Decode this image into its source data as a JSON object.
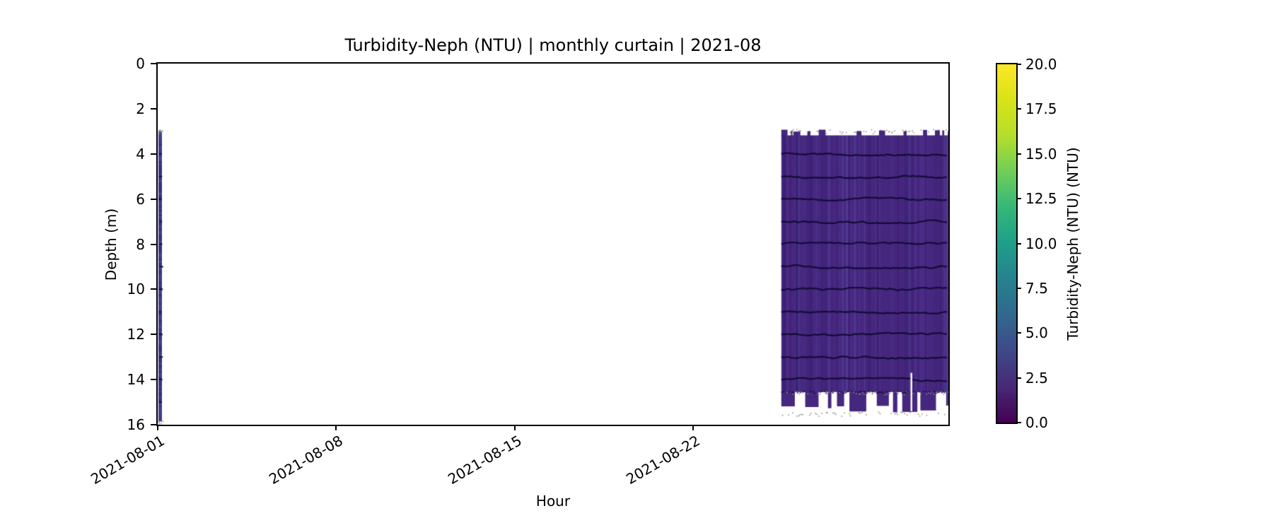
{
  "figure": {
    "background_color": "#ffffff",
    "spine_color": "#000000"
  },
  "chart_data": {
    "type": "heatmap",
    "variant": "depth-time curtain plot (matplotlib style)",
    "title": "Turbidity-Neph (NTU) | monthly curtain | 2021-08",
    "xlabel": "Hour",
    "ylabel": "Depth (m)",
    "x_axis": {
      "start_date": "2021-08-01",
      "end_date": "2021-09-01",
      "span_days": 31,
      "tick_days": [
        0,
        7,
        14,
        21
      ],
      "tick_labels": [
        "2021-08-01",
        "2021-08-08",
        "2021-08-15",
        "2021-08-22"
      ],
      "tick_rotation_deg": -30
    },
    "y_axis": {
      "min": 0,
      "max": 16,
      "inverted": true,
      "ticks": [
        0,
        2,
        4,
        6,
        8,
        10,
        12,
        14,
        16
      ],
      "tick_labels": [
        "0",
        "2",
        "4",
        "6",
        "8",
        "10",
        "12",
        "14",
        "16"
      ]
    },
    "colorbar": {
      "label": "Turbidity-Neph (NTU) (NTU)",
      "min": 0.0,
      "max": 20.0,
      "ticks": [
        0.0,
        2.5,
        5.0,
        7.5,
        10.0,
        12.5,
        15.0,
        17.5,
        20.0
      ],
      "tick_labels": [
        "0.0",
        "2.5",
        "5.0",
        "7.5",
        "10.0",
        "12.5",
        "15.0",
        "17.5",
        "20.0"
      ],
      "colormap": "viridis",
      "stops": [
        [
          0.0,
          "#440154"
        ],
        [
          0.1,
          "#482878"
        ],
        [
          0.2,
          "#3e4989"
        ],
        [
          0.3,
          "#31688e"
        ],
        [
          0.4,
          "#26828e"
        ],
        [
          0.5,
          "#1f9e89"
        ],
        [
          0.6,
          "#35b779"
        ],
        [
          0.7,
          "#6ece58"
        ],
        [
          0.8,
          "#b5de2b"
        ],
        [
          0.9,
          "#d8e219"
        ],
        [
          1.0,
          "#fde725"
        ]
      ]
    },
    "segments": [
      {
        "name": "early-august-profile-stripe",
        "x_start_day": 0.0,
        "x_end_day": 0.16,
        "depth_top_m": 3.0,
        "depth_bottom_m": 15.85,
        "approx_value_ntu": 2.5,
        "base_color": "#3e3d88"
      },
      {
        "name": "late-august-curtain-block",
        "x_start_day": 24.45,
        "x_end_day": 31.0,
        "depth_top_m": 2.95,
        "solid_top_m": 3.18,
        "solid_bottom_m": 14.55,
        "fringe_bottom_m": 15.45,
        "approx_value_ntu": 1.5,
        "base_color": "#46277e",
        "white_gap_day": 29.55,
        "white_gap_top_m": 13.7,
        "white_gap_bottom_m": 15.4
      }
    ],
    "contour_depths_m": [
      4,
      5,
      6,
      7,
      8,
      9,
      10,
      11,
      12,
      13,
      14
    ],
    "contour_color": "#150a38",
    "speckle_color": "#8f8f8f",
    "no_data_color": "#ffffff"
  }
}
